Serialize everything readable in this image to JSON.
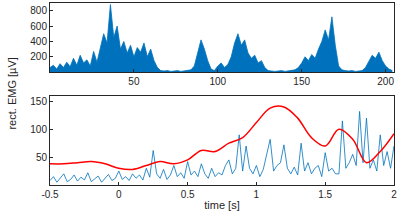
{
  "chart_data": [
    {
      "type": "area",
      "x": [
        0,
        2,
        4,
        6,
        8,
        10,
        12,
        14,
        16,
        18,
        20,
        22,
        24,
        26,
        28,
        30,
        32,
        34,
        36,
        38,
        40,
        42,
        44,
        46,
        48,
        50,
        52,
        54,
        56,
        58,
        60,
        62,
        64,
        66,
        68,
        70,
        72,
        74,
        76,
        78,
        80,
        82,
        84,
        86,
        88,
        90,
        92,
        94,
        96,
        98,
        100,
        102,
        104,
        106,
        108,
        110,
        112,
        114,
        116,
        118,
        120,
        122,
        124,
        126,
        128,
        130,
        132,
        134,
        136,
        138,
        140,
        142,
        144,
        146,
        148,
        150,
        152,
        154,
        156,
        158,
        160,
        162,
        164,
        166,
        168,
        170,
        172,
        174,
        176,
        178,
        180,
        182,
        184,
        186,
        188,
        190,
        192,
        194,
        196,
        198,
        200,
        202,
        204
      ],
      "series": [
        {
          "color": "#0072bd",
          "values": [
            60,
            90,
            40,
            110,
            60,
            130,
            70,
            180,
            90,
            220,
            120,
            160,
            80,
            270,
            130,
            320,
            500,
            380,
            880,
            450,
            600,
            300,
            400,
            250,
            350,
            200,
            320,
            260,
            380,
            200,
            300,
            150,
            60,
            20,
            15,
            20,
            10,
            15,
            20,
            10,
            15,
            20,
            30,
            80,
            250,
            420,
            300,
            150,
            40,
            20,
            80,
            120,
            60,
            100,
            200,
            380,
            500,
            350,
            420,
            250,
            180,
            220,
            120,
            150,
            60,
            20,
            15,
            10,
            15,
            20,
            10,
            15,
            20,
            30,
            60,
            120,
            200,
            150,
            230,
            180,
            300,
            400,
            550,
            420,
            720,
            350,
            80,
            30,
            20,
            15,
            20,
            10,
            15,
            20,
            60,
            150,
            220,
            180,
            260,
            150,
            80,
            40,
            20
          ]
        }
      ],
      "xlim": [
        0,
        205
      ],
      "ylim": [
        0,
        900
      ],
      "xticks": [
        50,
        100,
        150,
        200
      ],
      "yticks": [
        200,
        400,
        600,
        800
      ]
    },
    {
      "type": "line",
      "xlabel": "time [s]",
      "ylabel": "rect. EMG [µV]",
      "series": [
        {
          "color": "#0072bd",
          "type": "line",
          "x": [
            -0.5,
            -0.475,
            -0.45,
            -0.425,
            -0.4,
            -0.375,
            -0.35,
            -0.325,
            -0.3,
            -0.275,
            -0.25,
            -0.225,
            -0.2,
            -0.175,
            -0.15,
            -0.125,
            -0.1,
            -0.075,
            -0.05,
            -0.025,
            0,
            0.025,
            0.05,
            0.075,
            0.1,
            0.125,
            0.15,
            0.175,
            0.2,
            0.225,
            0.25,
            0.275,
            0.3,
            0.325,
            0.35,
            0.375,
            0.4,
            0.425,
            0.45,
            0.475,
            0.5,
            0.525,
            0.55,
            0.575,
            0.6,
            0.625,
            0.65,
            0.675,
            0.7,
            0.725,
            0.75,
            0.775,
            0.8,
            0.825,
            0.85,
            0.875,
            0.9,
            0.925,
            0.95,
            0.975,
            1,
            1.025,
            1.05,
            1.075,
            1.1,
            1.125,
            1.15,
            1.175,
            1.2,
            1.225,
            1.25,
            1.275,
            1.3,
            1.325,
            1.35,
            1.375,
            1.4,
            1.425,
            1.45,
            1.475,
            1.5,
            1.525,
            1.55,
            1.575,
            1.6,
            1.625,
            1.65,
            1.675,
            1.7,
            1.725,
            1.75,
            1.775,
            1.8,
            1.825,
            1.85,
            1.875,
            1.9,
            1.925,
            1.95,
            1.975,
            2
          ],
          "values": [
            8,
            15,
            5,
            12,
            20,
            6,
            10,
            18,
            7,
            14,
            9,
            22,
            6,
            11,
            16,
            5,
            13,
            19,
            8,
            12,
            25,
            10,
            15,
            8,
            20,
            12,
            18,
            9,
            30,
            14,
            62,
            20,
            12,
            28,
            10,
            18,
            35,
            15,
            22,
            12,
            42,
            18,
            25,
            15,
            38,
            20,
            12,
            30,
            15,
            22,
            18,
            35,
            45,
            20,
            30,
            90,
            25,
            70,
            30,
            20,
            35,
            15,
            28,
            55,
            82,
            25,
            35,
            40,
            72,
            30,
            20,
            32,
            18,
            75,
            25,
            40,
            20,
            30,
            35,
            15,
            58,
            25,
            30,
            20,
            20,
            115,
            30,
            40,
            55,
            35,
            132,
            40,
            120,
            30,
            45,
            25,
            90,
            35,
            60,
            30,
            70
          ]
        },
        {
          "color": "#ff0000",
          "type": "spline",
          "x": [
            -0.5,
            -0.4,
            -0.3,
            -0.2,
            -0.1,
            0,
            0.1,
            0.2,
            0.3,
            0.4,
            0.5,
            0.6,
            0.7,
            0.8,
            0.9,
            1,
            1.1,
            1.2,
            1.3,
            1.4,
            1.5,
            1.6,
            1.7,
            1.8,
            1.9,
            2
          ],
          "values": [
            38,
            38,
            40,
            42,
            38,
            30,
            28,
            35,
            42,
            38,
            45,
            62,
            60,
            75,
            85,
            112,
            138,
            140,
            120,
            85,
            70,
            100,
            82,
            40,
            60,
            92
          ]
        }
      ],
      "xlim": [
        -0.5,
        2
      ],
      "ylim": [
        0,
        160
      ],
      "xticks": [
        -0.5,
        0,
        0.5,
        1,
        1.5,
        2
      ],
      "yticks": [
        50,
        100,
        150
      ]
    }
  ]
}
